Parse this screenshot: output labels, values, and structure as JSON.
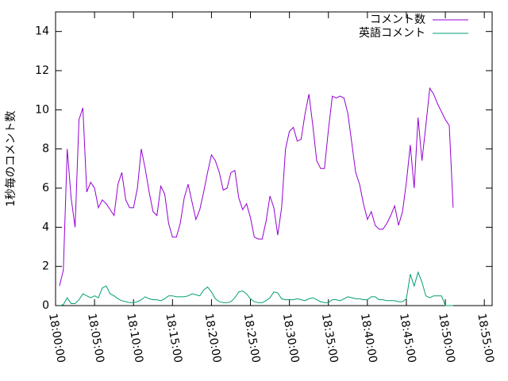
{
  "chart_data": {
    "type": "line",
    "ylabel": "1秒毎のコメント数",
    "x": [
      "18:00:30",
      "18:01:00",
      "18:01:30",
      "18:02:00",
      "18:02:30",
      "18:03:00",
      "18:03:30",
      "18:04:00",
      "18:04:30",
      "18:05:00",
      "18:05:30",
      "18:06:00",
      "18:06:30",
      "18:07:00",
      "18:07:30",
      "18:08:00",
      "18:08:30",
      "18:09:00",
      "18:09:30",
      "18:10:00",
      "18:10:30",
      "18:11:00",
      "18:11:30",
      "18:12:00",
      "18:12:30",
      "18:13:00",
      "18:13:30",
      "18:14:00",
      "18:14:30",
      "18:15:00",
      "18:15:30",
      "18:16:00",
      "18:16:30",
      "18:17:00",
      "18:17:30",
      "18:18:00",
      "18:18:30",
      "18:19:00",
      "18:19:30",
      "18:20:00",
      "18:20:30",
      "18:21:00",
      "18:21:30",
      "18:22:00",
      "18:22:30",
      "18:23:00",
      "18:23:30",
      "18:24:00",
      "18:24:30",
      "18:25:00",
      "18:25:30",
      "18:26:00",
      "18:26:30",
      "18:27:00",
      "18:27:30",
      "18:28:00",
      "18:28:30",
      "18:29:00",
      "18:29:30",
      "18:30:00",
      "18:30:30",
      "18:31:00",
      "18:31:30",
      "18:32:00",
      "18:32:30",
      "18:33:00",
      "18:33:30",
      "18:34:00",
      "18:34:30",
      "18:35:00",
      "18:35:30",
      "18:36:00",
      "18:36:30",
      "18:37:00",
      "18:37:30",
      "18:38:00",
      "18:38:30",
      "18:39:00",
      "18:39:30",
      "18:40:00",
      "18:40:30",
      "18:41:00",
      "18:41:30",
      "18:42:00",
      "18:42:30",
      "18:43:00",
      "18:43:30",
      "18:44:00",
      "18:44:30",
      "18:45:00",
      "18:45:30",
      "18:46:00",
      "18:46:30",
      "18:47:00",
      "18:47:30",
      "18:48:00",
      "18:48:30",
      "18:49:00",
      "18:49:30",
      "18:50:00",
      "18:50:30",
      "18:51:00"
    ],
    "series": [
      {
        "name": "コメント数",
        "color": "#9400d3",
        "values": [
          1.0,
          1.8,
          8.0,
          5.5,
          4.0,
          9.5,
          10.1,
          5.8,
          6.3,
          6.0,
          5.0,
          5.4,
          5.2,
          4.9,
          4.6,
          6.2,
          6.8,
          5.4,
          5.0,
          5.0,
          6.0,
          8.0,
          7.0,
          5.8,
          4.8,
          4.6,
          6.1,
          5.7,
          4.2,
          3.5,
          3.5,
          4.2,
          5.5,
          6.2,
          5.3,
          4.4,
          4.9,
          5.8,
          6.8,
          7.7,
          7.4,
          6.8,
          5.9,
          6.0,
          6.8,
          6.9,
          5.5,
          4.9,
          5.2,
          4.5,
          3.5,
          3.4,
          3.4,
          4.3,
          5.6,
          5.0,
          3.6,
          5.0,
          8.0,
          8.9,
          9.1,
          8.4,
          8.5,
          9.8,
          10.8,
          9.2,
          7.4,
          7.0,
          7.0,
          9.0,
          10.7,
          10.6,
          10.7,
          10.6,
          9.8,
          8.3,
          6.8,
          6.2,
          5.2,
          4.4,
          4.8,
          4.1,
          3.9,
          3.9,
          4.2,
          4.6,
          5.1,
          4.1,
          4.8,
          6.3,
          8.2,
          6.0,
          9.6,
          7.4,
          9.2,
          11.1,
          10.8,
          10.3,
          9.9,
          9.5,
          9.2,
          5.0
        ]
      },
      {
        "name": "英語コメント",
        "color": "#009e73",
        "values": [
          0,
          0.05,
          0.4,
          0.1,
          0.1,
          0.3,
          0.6,
          0.5,
          0.4,
          0.5,
          0.4,
          0.9,
          1.0,
          0.6,
          0.5,
          0.35,
          0.25,
          0.2,
          0.15,
          0.15,
          0.2,
          0.3,
          0.45,
          0.35,
          0.3,
          0.3,
          0.25,
          0.35,
          0.5,
          0.5,
          0.45,
          0.45,
          0.45,
          0.5,
          0.6,
          0.55,
          0.5,
          0.8,
          0.95,
          0.7,
          0.35,
          0.2,
          0.15,
          0.15,
          0.2,
          0.4,
          0.7,
          0.75,
          0.6,
          0.35,
          0.2,
          0.15,
          0.15,
          0.25,
          0.4,
          0.7,
          0.65,
          0.35,
          0.3,
          0.3,
          0.3,
          0.35,
          0.3,
          0.25,
          0.35,
          0.4,
          0.3,
          0.2,
          0.15,
          0.15,
          0.3,
          0.3,
          0.25,
          0.35,
          0.45,
          0.4,
          0.35,
          0.35,
          0.3,
          0.3,
          0.45,
          0.45,
          0.3,
          0.3,
          0.25,
          0.25,
          0.25,
          0.2,
          0.2,
          0.35,
          1.6,
          1.0,
          1.7,
          1.2,
          0.5,
          0.4,
          0.5,
          0.5,
          0.5,
          0,
          0,
          0
        ]
      }
    ],
    "xlim": [
      "18:00:00",
      "18:56:00"
    ],
    "xticks": [
      "18:00:00",
      "18:05:00",
      "18:10:00",
      "18:15:00",
      "18:20:00",
      "18:25:00",
      "18:30:00",
      "18:35:00",
      "18:40:00",
      "18:45:00",
      "18:50:00",
      "18:55:00"
    ],
    "ylim": [
      0,
      15
    ],
    "yticks": [
      0,
      2,
      4,
      6,
      8,
      10,
      12,
      14
    ],
    "legend": "top-right"
  }
}
